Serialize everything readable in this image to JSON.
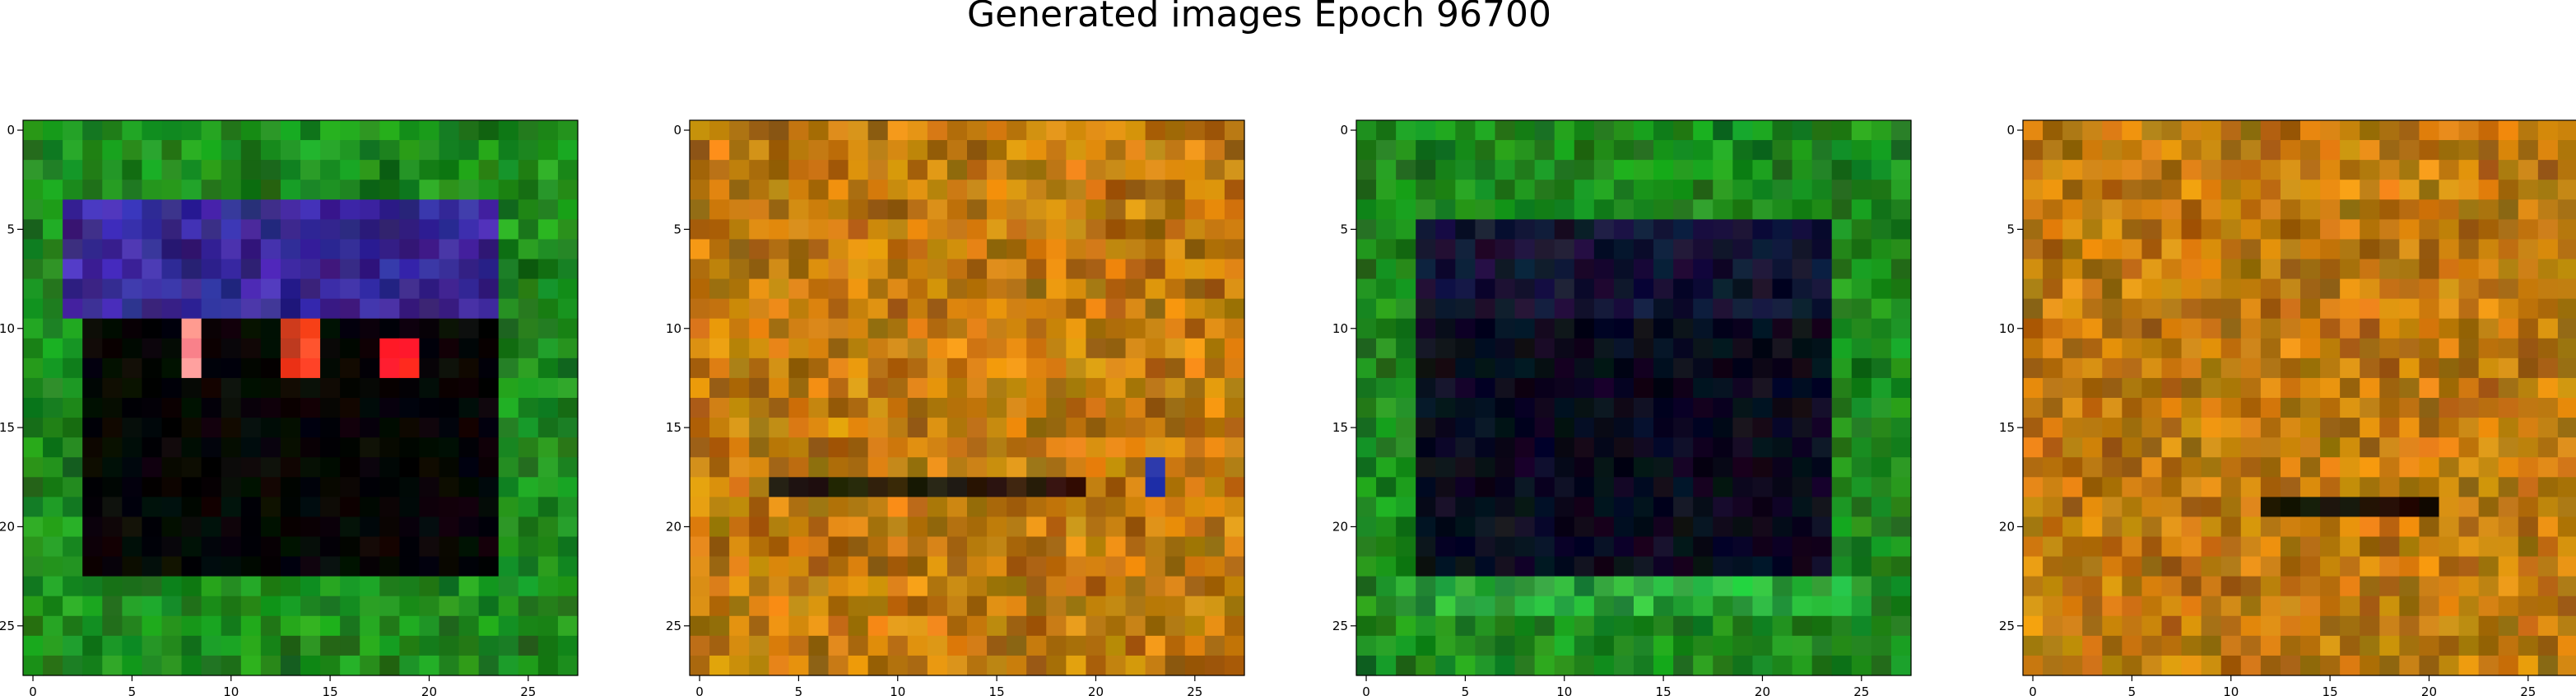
{
  "figure": {
    "suptitle": "Generated images Epoch 96700"
  },
  "chart_data": [
    {
      "type": "heatmap",
      "grid": 28,
      "xticks": [
        0,
        5,
        10,
        15,
        20,
        25
      ],
      "yticks": [
        0,
        5,
        10,
        15,
        20,
        25
      ],
      "xlim": [
        -0.5,
        27.5
      ],
      "ylim": [
        27.5,
        -0.5
      ],
      "base_color": "#1e8a1e",
      "features": [
        {
          "rows": [
            4,
            9
          ],
          "cols": [
            2,
            23
          ],
          "color": "#3a2a9a",
          "label": "purple band"
        },
        {
          "rows": [
            10,
            22
          ],
          "cols": [
            3,
            23
          ],
          "color": "#050505",
          "label": "dark block"
        },
        {
          "rows": [
            10,
            12
          ],
          "cols": [
            8,
            8
          ],
          "color": "#f08080",
          "label": "pink marks"
        },
        {
          "rows": [
            10,
            12
          ],
          "cols": [
            13,
            14
          ],
          "color": "#ff4020",
          "label": "red marks"
        },
        {
          "rows": [
            11,
            12
          ],
          "cols": [
            18,
            19
          ],
          "color": "#ff2020",
          "label": "red marks"
        }
      ]
    },
    {
      "type": "heatmap",
      "grid": 28,
      "xticks": [
        0,
        5,
        10,
        15,
        20,
        25
      ],
      "yticks": [
        0,
        5,
        10,
        15,
        20,
        25
      ],
      "xlim": [
        -0.5,
        27.5
      ],
      "ylim": [
        27.5,
        -0.5
      ],
      "base_color": "#c07a10",
      "features": [
        {
          "rows": [
            18,
            18
          ],
          "cols": [
            4,
            19
          ],
          "color": "#2a1a0a",
          "label": "dark streak"
        },
        {
          "rows": [
            17,
            18
          ],
          "cols": [
            23,
            23
          ],
          "color": "#1a2a8a",
          "label": "blue mark"
        }
      ]
    },
    {
      "type": "heatmap",
      "grid": 28,
      "xticks": [
        0,
        5,
        10,
        15,
        20,
        25
      ],
      "yticks": [
        0,
        5,
        10,
        15,
        20,
        25
      ],
      "xlim": [
        -0.5,
        27.5
      ],
      "ylim": [
        27.5,
        -0.5
      ],
      "base_color": "#1e8a1e",
      "features": [
        {
          "rows": [
            5,
            9
          ],
          "cols": [
            3,
            23
          ],
          "color": "#141434",
          "label": "dark band"
        },
        {
          "rows": [
            10,
            22
          ],
          "cols": [
            3,
            23
          ],
          "color": "#0a0a1e",
          "label": "dark block"
        },
        {
          "rows": [
            23,
            24
          ],
          "cols": [
            2,
            25
          ],
          "color": "#2aa83a",
          "label": "light green band"
        }
      ]
    },
    {
      "type": "heatmap",
      "grid": 28,
      "xticks": [
        0,
        5,
        10,
        15,
        20,
        25
      ],
      "yticks": [
        0,
        5,
        10,
        15,
        20,
        25
      ],
      "xlim": [
        -0.5,
        27.5
      ],
      "ylim": [
        27.5,
        -0.5
      ],
      "base_color": "#c07a10",
      "features": [
        {
          "rows": [
            19,
            19
          ],
          "cols": [
            12,
            20
          ],
          "color": "#1a1005",
          "label": "dark streak"
        }
      ]
    }
  ]
}
